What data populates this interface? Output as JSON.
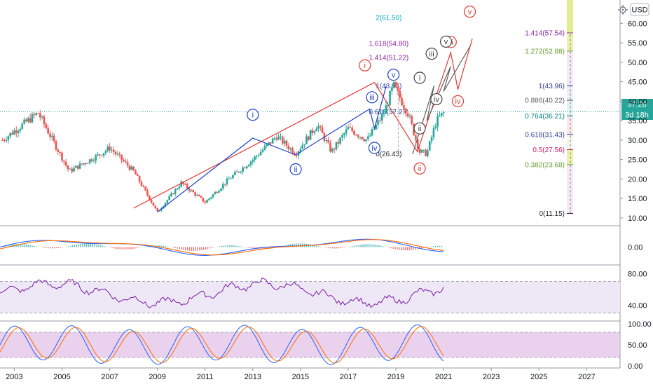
{
  "toolbar": {
    "currency_label": "USD",
    "settings_icon": "gear-icon"
  },
  "price_badge": {
    "value": "37.28",
    "countdown": "3d 18h",
    "color": "#26a69a"
  },
  "chart_data": [
    {
      "type": "candlestick",
      "series": "main price (monthly)",
      "ylim": [
        8,
        66
      ],
      "y_ticks": [
        "10.00",
        "15.00",
        "20.00",
        "25.00",
        "30.00",
        "35.00",
        "40.00",
        "45.00",
        "50.00",
        "55.00",
        "60.00"
      ],
      "x_ticks": [
        "2003",
        "2005",
        "2007",
        "2009",
        "2011",
        "2013",
        "2015",
        "2017",
        "2019",
        "2021",
        "2023",
        "2025",
        "2027"
      ],
      "x_tick_years": [
        2003,
        2005,
        2007,
        2009,
        2011,
        2013,
        2015,
        2017,
        2019,
        2021,
        2023,
        2025,
        2027
      ],
      "xlim": [
        2002.4,
        2028.4
      ],
      "colors": {
        "up": "#26a69a",
        "down": "#ef5350"
      },
      "key_points": [
        [
          2002.5,
          30
        ],
        [
          2004.0,
          37
        ],
        [
          2005.3,
          22
        ],
        [
          2006.5,
          26
        ],
        [
          2007.0,
          28
        ],
        [
          2008.0,
          22
        ],
        [
          2009.0,
          11.5
        ],
        [
          2010.0,
          19
        ],
        [
          2011.0,
          14
        ],
        [
          2012.0,
          20
        ],
        [
          2013.0,
          25
        ],
        [
          2014.0,
          31
        ],
        [
          2014.8,
          26.5
        ],
        [
          2015.7,
          34
        ],
        [
          2016.3,
          27
        ],
        [
          2017.0,
          33
        ],
        [
          2017.8,
          30
        ],
        [
          2018.5,
          37
        ],
        [
          2018.9,
          44
        ],
        [
          2019.5,
          37
        ],
        [
          2020.0,
          27
        ],
        [
          2020.3,
          26.5
        ],
        [
          2020.7,
          35
        ],
        [
          2021.0,
          37
        ]
      ],
      "fib_retracement": {
        "levels": [
          {
            "label": "1.414(57.54)",
            "value": 57.54,
            "color": "#8e24aa"
          },
          {
            "label": "1.272(52.88)",
            "value": 52.88,
            "color": "#689f38"
          },
          {
            "label": "1(43.96)",
            "value": 43.96,
            "color": "#303f9f"
          },
          {
            "label": "0.886(40.22)",
            "value": 40.22,
            "color": "#616161"
          },
          {
            "label": "0.764(36.21)",
            "value": 36.21,
            "color": "#00897b"
          },
          {
            "label": "0.618(31.43)",
            "value": 31.43,
            "color": "#303f9f"
          },
          {
            "label": "0.5(27.56)",
            "value": 27.56,
            "color": "#d81b60"
          },
          {
            "label": "0.382(23.68)",
            "value": 23.68,
            "color": "#689f38"
          },
          {
            "label": "0(11.15)",
            "value": 11.15,
            "color": "#212121"
          }
        ],
        "band_colors": [
          "#e6ee9c",
          "#f3e5f5",
          "#e8eaf6",
          "#e0f2f1",
          "#fce4ec",
          "#f1f8e9"
        ]
      },
      "fib_extension": [
        {
          "label": "2(61.50)",
          "value": 61.5,
          "color": "#00acc1"
        },
        {
          "label": "1.618(54.80)",
          "value": 54.8,
          "color": "#8e24aa"
        },
        {
          "label": "1.414(51.22)",
          "value": 51.22,
          "color": "#8e24aa"
        },
        {
          "label": "1(43.96)",
          "value": 43.96,
          "color": "#303f9f"
        },
        {
          "label": "0.618(37.27)",
          "value": 37.27,
          "color": "#303f9f"
        },
        {
          "label": "0(26.43)",
          "value": 26.43,
          "color": "#212121"
        }
      ],
      "wave_labels": [
        {
          "text": "i",
          "x": 2013.0,
          "y": 36.5,
          "color": "#1e40c8"
        },
        {
          "text": "ii",
          "x": 2014.8,
          "y": 22.5,
          "color": "#1e40c8"
        },
        {
          "text": "iii",
          "x": 2018.0,
          "y": 41.0,
          "color": "#1e40c8"
        },
        {
          "text": "iv",
          "x": 2018.1,
          "y": 28.0,
          "color": "#1e40c8"
        },
        {
          "text": "v",
          "x": 2018.9,
          "y": 46.8,
          "color": "#1e40c8"
        },
        {
          "text": "i",
          "x": 2017.7,
          "y": 49.2,
          "color": "#e53935"
        },
        {
          "text": "ii",
          "x": 2020.0,
          "y": 22.7,
          "color": "#e53935"
        },
        {
          "text": "iii",
          "x": 2021.3,
          "y": 55.2,
          "color": "#e53935"
        },
        {
          "text": "iv",
          "x": 2021.6,
          "y": 40.0,
          "color": "#e53935"
        },
        {
          "text": "v",
          "x": 2022.1,
          "y": 63.0,
          "color": "#e53935"
        },
        {
          "text": "i",
          "x": 2020.0,
          "y": 46.0,
          "color": "#424242"
        },
        {
          "text": "ii",
          "x": 2020.0,
          "y": 33.0,
          "color": "#424242"
        },
        {
          "text": "iii",
          "x": 2020.5,
          "y": 52.2,
          "color": "#424242"
        },
        {
          "text": "iv",
          "x": 2020.7,
          "y": 40.5,
          "color": "#424242"
        },
        {
          "text": "v",
          "x": 2021.1,
          "y": 55.3,
          "color": "#424242"
        }
      ],
      "wave_paths": [
        {
          "name": "red-primary-count",
          "color": "#e53935",
          "points": [
            [
              2008.0,
              12.5
            ],
            [
              2018.1,
              44.8
            ],
            [
              2019.9,
              27.0
            ],
            [
              2021.3,
              52.5
            ],
            [
              2021.6,
              43.0
            ],
            [
              2022.2,
              56.0
            ]
          ]
        },
        {
          "name": "blue-minor-count",
          "color": "#1e40c8",
          "points": [
            [
              2009.0,
              11.5
            ],
            [
              2013.0,
              30.5
            ],
            [
              2014.8,
              26.2
            ],
            [
              2017.9,
              38.0
            ],
            [
              2018.1,
              33.0
            ],
            [
              2018.6,
              44.0
            ]
          ]
        },
        {
          "name": "gray-minute-count",
          "color": "#616161",
          "points": [
            [
              2019.7,
              26.4
            ],
            [
              2020.6,
              44.0
            ],
            [
              2020.3,
              35.0
            ],
            [
              2021.3,
              49.0
            ],
            [
              2021.0,
              42.5
            ],
            [
              2022.1,
              54.0
            ]
          ]
        }
      ]
    },
    {
      "type": "line",
      "series": "MACD",
      "y_ticks": [
        "0.00"
      ],
      "colors": {
        "macd": "#2962ff",
        "signal": "#ff6d00",
        "hist_up": "#26a69a",
        "hist_down": "#ef5350"
      }
    },
    {
      "type": "line",
      "series": "RSI",
      "y_ticks": [
        "80.00",
        "40.00"
      ],
      "ylim": [
        20,
        90
      ],
      "band": [
        30,
        70
      ],
      "colors": {
        "line": "#7b1fa2",
        "band": "#ede7f6"
      }
    },
    {
      "type": "line",
      "series": "Stochastic RSI",
      "y_ticks": [
        "100.00",
        "50.00",
        "0.00"
      ],
      "ylim": [
        -5,
        105
      ],
      "band": [
        20,
        80
      ],
      "colors": {
        "k": "#2962ff",
        "d": "#ff6d00",
        "band": "#e1bee7"
      }
    }
  ]
}
